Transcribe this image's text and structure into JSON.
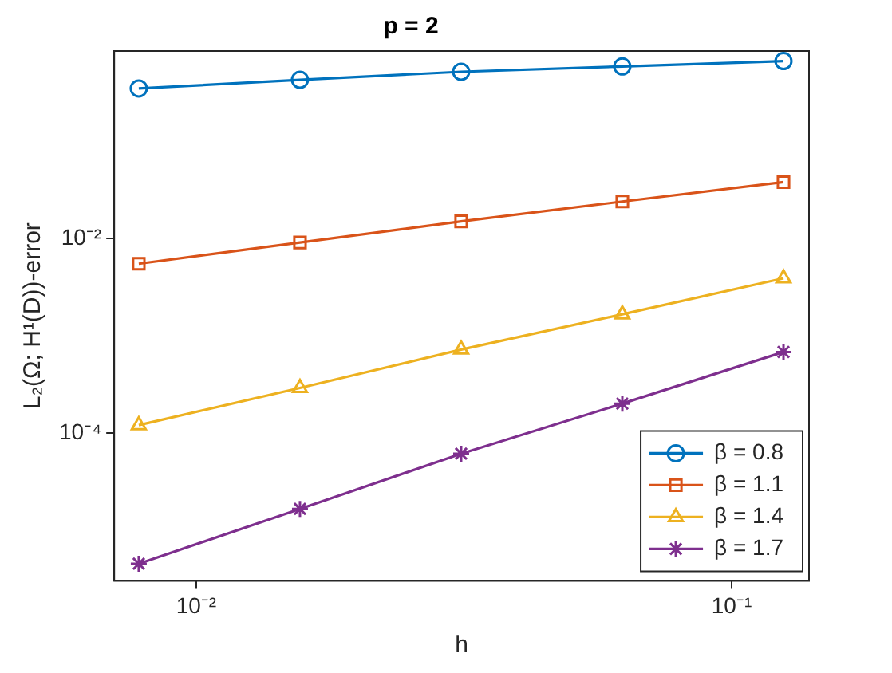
{
  "chart_data": {
    "type": "line",
    "title": "p = 2",
    "xlabel": "h",
    "ylabel": "L₂(Ω; H¹(D))-error",
    "x": [
      0.0078125,
      0.015625,
      0.03125,
      0.0625,
      0.125
    ],
    "series": [
      {
        "name": "β = 0.8",
        "color": "#0072bd",
        "marker": "circle",
        "values": [
          0.35,
          0.43,
          0.52,
          0.59,
          0.67
        ]
      },
      {
        "name": "β = 1.1",
        "color": "#d95319",
        "marker": "square",
        "values": [
          0.0055,
          0.0091,
          0.015,
          0.024,
          0.038
        ]
      },
      {
        "name": "β = 1.4",
        "color": "#edb120",
        "marker": "triangle",
        "values": [
          0.00012,
          0.00029,
          0.00072,
          0.00166,
          0.0039
        ]
      },
      {
        "name": "β = 1.7",
        "color": "#7e2f8e",
        "marker": "cross",
        "values": [
          4.5e-06,
          1.65e-05,
          6.1e-05,
          0.0002,
          0.00068
        ]
      }
    ],
    "log": "xy",
    "xlim": [
      0.00703,
      0.1395
    ],
    "ylim": [
      3e-06,
      0.85
    ],
    "xticks": [
      {
        "value": 0.01,
        "label": "10⁻²"
      },
      {
        "value": 0.1,
        "label": "10⁻¹"
      }
    ],
    "yticks": [
      {
        "value": 0.0001,
        "label": "10⁻⁴"
      },
      {
        "value": 0.01,
        "label": "10⁻²"
      }
    ],
    "grid": false,
    "legend": "bottom right",
    "line_style": "solid"
  }
}
